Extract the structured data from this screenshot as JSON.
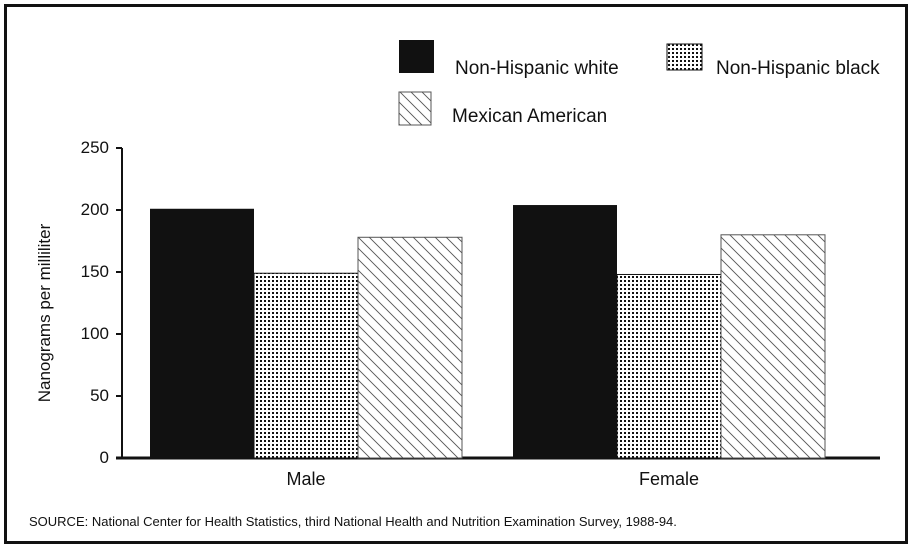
{
  "chart_data": {
    "type": "bar",
    "categories": [
      "Male",
      "Female"
    ],
    "series": [
      {
        "name": "Non-Hispanic white",
        "values": [
          201,
          204
        ],
        "color": "#111111",
        "pattern": "solid"
      },
      {
        "name": "Non-Hispanic black",
        "values": [
          149,
          148
        ],
        "color": "#111111",
        "pattern": "dots"
      },
      {
        "name": "Mexican American",
        "values": [
          178,
          180
        ],
        "color": "#111111",
        "pattern": "hatch"
      }
    ],
    "title": "",
    "xlabel": "",
    "ylabel": "Nanograms per milliliter",
    "ylim": [
      0,
      250
    ],
    "yticks": [
      0,
      50,
      100,
      150,
      200,
      250
    ],
    "ytick_labels": [
      "0",
      "50",
      "100",
      "150",
      "200",
      "250"
    ],
    "grid": false,
    "legend_position": "top-right"
  },
  "source_note": "SOURCE: National Center for Health Statistics, third National Health and Nutrition Examination Survey, 1988-94."
}
